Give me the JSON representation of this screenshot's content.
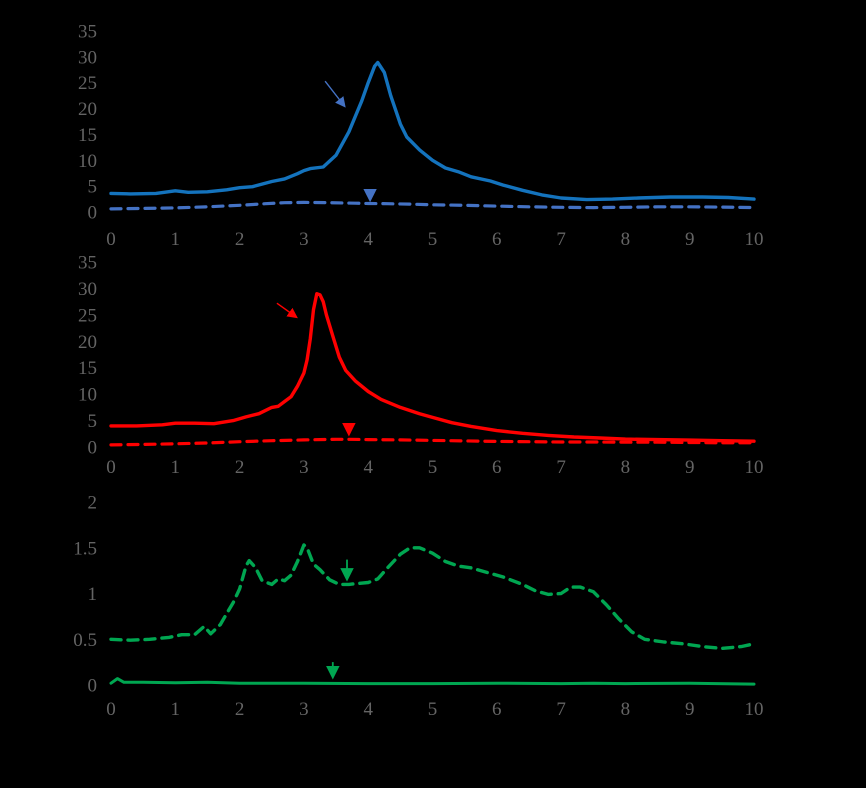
{
  "figure": {
    "background": "#000000",
    "tick_label_color": "#646464",
    "panels": [
      "top-blue-panel",
      "middle-red-panel",
      "bottom-green-panel"
    ]
  },
  "chart_data": [
    {
      "type": "line",
      "panel": "top-blue-panel",
      "title": "",
      "xlabel": "",
      "ylabel": "",
      "xlim": [
        0,
        10
      ],
      "ylim": [
        0,
        35
      ],
      "x_ticks": [
        0,
        1,
        2,
        3,
        4,
        5,
        6,
        7,
        8,
        9,
        10
      ],
      "y_ticks": [
        0,
        5,
        10,
        15,
        20,
        25,
        30,
        35
      ],
      "grid": false,
      "legend": "none",
      "series": [
        {
          "name": "blue-solid",
          "color": "#1473BD",
          "dash": "solid",
          "width": 3.4,
          "points": [
            [
              0,
              3.6
            ],
            [
              0.3,
              3.5
            ],
            [
              0.7,
              3.6
            ],
            [
              1.0,
              4.1
            ],
            [
              1.2,
              3.8
            ],
            [
              1.5,
              3.9
            ],
            [
              1.8,
              4.3
            ],
            [
              2.0,
              4.7
            ],
            [
              2.2,
              4.9
            ],
            [
              2.5,
              5.9
            ],
            [
              2.7,
              6.4
            ],
            [
              2.9,
              7.4
            ],
            [
              3.0,
              8.0
            ],
            [
              3.1,
              8.4
            ],
            [
              3.3,
              8.7
            ],
            [
              3.5,
              11.0
            ],
            [
              3.7,
              15.5
            ],
            [
              3.9,
              21.5
            ],
            [
              4.0,
              25.0
            ],
            [
              4.1,
              28.2
            ],
            [
              4.15,
              28.9
            ],
            [
              4.25,
              27.0
            ],
            [
              4.35,
              22.5
            ],
            [
              4.5,
              17.0
            ],
            [
              4.6,
              14.5
            ],
            [
              4.8,
              12.0
            ],
            [
              5.0,
              10.0
            ],
            [
              5.2,
              8.5
            ],
            [
              5.4,
              7.8
            ],
            [
              5.6,
              6.8
            ],
            [
              5.9,
              6.0
            ],
            [
              6.1,
              5.2
            ],
            [
              6.4,
              4.2
            ],
            [
              6.7,
              3.3
            ],
            [
              7.0,
              2.7
            ],
            [
              7.4,
              2.4
            ],
            [
              7.8,
              2.5
            ],
            [
              8.2,
              2.7
            ],
            [
              8.7,
              2.9
            ],
            [
              9.2,
              2.9
            ],
            [
              9.6,
              2.8
            ],
            [
              10,
              2.5
            ]
          ]
        },
        {
          "name": "blue-dashed",
          "color": "#4472C4",
          "dash": "dashed",
          "width": 3.2,
          "points": [
            [
              0,
              0.6
            ],
            [
              0.5,
              0.7
            ],
            [
              1.0,
              0.8
            ],
            [
              1.5,
              1.0
            ],
            [
              2.0,
              1.3
            ],
            [
              2.4,
              1.6
            ],
            [
              2.7,
              1.8
            ],
            [
              3.0,
              1.85
            ],
            [
              3.4,
              1.8
            ],
            [
              3.8,
              1.7
            ],
            [
              4.0,
              1.65
            ],
            [
              4.3,
              1.6
            ],
            [
              4.7,
              1.5
            ],
            [
              5.0,
              1.4
            ],
            [
              5.5,
              1.3
            ],
            [
              6.0,
              1.15
            ],
            [
              6.5,
              1.0
            ],
            [
              7.0,
              0.9
            ],
            [
              7.5,
              0.85
            ],
            [
              8.0,
              0.9
            ],
            [
              8.5,
              1.0
            ],
            [
              9.0,
              1.0
            ],
            [
              9.5,
              0.95
            ],
            [
              10,
              0.85
            ]
          ]
        }
      ],
      "annotations": [
        {
          "name": "arrow-to-blue-solid",
          "type": "arrow",
          "color": "#4472C4",
          "from": [
            3.33,
            25.3
          ],
          "to": [
            3.63,
            20.5
          ],
          "stroke_width": 1.4
        },
        {
          "name": "arrow-to-blue-dashed",
          "type": "arrow",
          "color": "#4472C4",
          "from": [
            4.03,
            4.4
          ],
          "to": [
            4.03,
            2.4
          ],
          "stroke_width": 1.8
        }
      ]
    },
    {
      "type": "line",
      "panel": "middle-red-panel",
      "title": "",
      "xlabel": "",
      "ylabel": "",
      "xlim": [
        0,
        10
      ],
      "ylim": [
        0,
        35
      ],
      "x_ticks": [
        0,
        1,
        2,
        3,
        4,
        5,
        6,
        7,
        8,
        9,
        10
      ],
      "y_ticks": [
        0,
        5,
        10,
        15,
        20,
        25,
        30,
        35
      ],
      "grid": false,
      "legend": "none",
      "series": [
        {
          "name": "red-solid",
          "color": "#FF0000",
          "dash": "solid",
          "width": 3.4,
          "points": [
            [
              0,
              4.0
            ],
            [
              0.4,
              4.0
            ],
            [
              0.8,
              4.2
            ],
            [
              1.0,
              4.5
            ],
            [
              1.3,
              4.5
            ],
            [
              1.6,
              4.4
            ],
            [
              1.9,
              5.0
            ],
            [
              2.1,
              5.7
            ],
            [
              2.3,
              6.3
            ],
            [
              2.5,
              7.5
            ],
            [
              2.6,
              7.7
            ],
            [
              2.7,
              8.6
            ],
            [
              2.8,
              9.5
            ],
            [
              2.9,
              11.5
            ],
            [
              3.0,
              14.0
            ],
            [
              3.05,
              16.5
            ],
            [
              3.1,
              20.5
            ],
            [
              3.15,
              26.0
            ],
            [
              3.2,
              29.0
            ],
            [
              3.25,
              28.8
            ],
            [
              3.3,
              27.5
            ],
            [
              3.35,
              25.0
            ],
            [
              3.45,
              21.0
            ],
            [
              3.55,
              17.0
            ],
            [
              3.65,
              14.5
            ],
            [
              3.8,
              12.5
            ],
            [
              4.0,
              10.5
            ],
            [
              4.2,
              9.0
            ],
            [
              4.5,
              7.5
            ],
            [
              4.8,
              6.3
            ],
            [
              5.0,
              5.6
            ],
            [
              5.3,
              4.6
            ],
            [
              5.6,
              3.9
            ],
            [
              6.0,
              3.1
            ],
            [
              6.4,
              2.6
            ],
            [
              6.8,
              2.2
            ],
            [
              7.2,
              1.9
            ],
            [
              7.6,
              1.7
            ],
            [
              8.0,
              1.5
            ],
            [
              8.5,
              1.4
            ],
            [
              9.0,
              1.3
            ],
            [
              9.5,
              1.2
            ],
            [
              10,
              1.1
            ]
          ]
        },
        {
          "name": "red-dashed",
          "color": "#FF0000",
          "dash": "dashed",
          "width": 3.2,
          "points": [
            [
              0,
              0.4
            ],
            [
              0.5,
              0.5
            ],
            [
              1.0,
              0.6
            ],
            [
              1.5,
              0.75
            ],
            [
              2.0,
              1.0
            ],
            [
              2.5,
              1.2
            ],
            [
              3.0,
              1.35
            ],
            [
              3.5,
              1.45
            ],
            [
              3.7,
              1.45
            ],
            [
              4.0,
              1.4
            ],
            [
              4.5,
              1.35
            ],
            [
              5.0,
              1.25
            ],
            [
              5.5,
              1.15
            ],
            [
              6.0,
              1.05
            ],
            [
              6.5,
              1.0
            ],
            [
              7.0,
              0.95
            ],
            [
              7.5,
              0.95
            ],
            [
              8.0,
              0.9
            ],
            [
              8.5,
              0.9
            ],
            [
              9.0,
              0.85
            ],
            [
              9.5,
              0.8
            ],
            [
              10,
              0.8
            ]
          ]
        }
      ],
      "annotations": [
        {
          "name": "arrow-to-red-solid",
          "type": "arrow",
          "color": "#FF0000",
          "from": [
            2.58,
            27.2
          ],
          "to": [
            2.88,
            24.6
          ],
          "stroke_width": 1.4
        },
        {
          "name": "arrow-to-red-dashed",
          "type": "arrow",
          "color": "#FF0000",
          "from": [
            3.7,
            4.5
          ],
          "to": [
            3.7,
            2.5
          ],
          "stroke_width": 1.8
        }
      ]
    },
    {
      "type": "line",
      "panel": "bottom-green-panel",
      "title": "",
      "xlabel": "",
      "ylabel": "",
      "xlim": [
        0,
        10
      ],
      "ylim": [
        0,
        2
      ],
      "x_ticks": [
        0,
        1,
        2,
        3,
        4,
        5,
        6,
        7,
        8,
        9,
        10
      ],
      "y_ticks": [
        0,
        0.5,
        1,
        1.5,
        2
      ],
      "grid": false,
      "legend": "none",
      "series": [
        {
          "name": "green-dashed",
          "color": "#00A651",
          "dash": "dashed",
          "width": 3.4,
          "points": [
            [
              0,
              0.5
            ],
            [
              0.3,
              0.49
            ],
            [
              0.6,
              0.5
            ],
            [
              0.9,
              0.52
            ],
            [
              1.1,
              0.55
            ],
            [
              1.3,
              0.55
            ],
            [
              1.45,
              0.64
            ],
            [
              1.55,
              0.56
            ],
            [
              1.7,
              0.66
            ],
            [
              1.8,
              0.78
            ],
            [
              1.9,
              0.9
            ],
            [
              2.0,
              1.05
            ],
            [
              2.1,
              1.3
            ],
            [
              2.15,
              1.36
            ],
            [
              2.25,
              1.28
            ],
            [
              2.35,
              1.14
            ],
            [
              2.5,
              1.1
            ],
            [
              2.6,
              1.16
            ],
            [
              2.7,
              1.14
            ],
            [
              2.8,
              1.2
            ],
            [
              2.9,
              1.35
            ],
            [
              3.0,
              1.53
            ],
            [
              3.05,
              1.5
            ],
            [
              3.15,
              1.32
            ],
            [
              3.25,
              1.26
            ],
            [
              3.4,
              1.15
            ],
            [
              3.55,
              1.1
            ],
            [
              3.7,
              1.1
            ],
            [
              3.85,
              1.11
            ],
            [
              4.0,
              1.12
            ],
            [
              4.15,
              1.16
            ],
            [
              4.3,
              1.28
            ],
            [
              4.5,
              1.43
            ],
            [
              4.65,
              1.5
            ],
            [
              4.8,
              1.5
            ],
            [
              5.0,
              1.44
            ],
            [
              5.2,
              1.35
            ],
            [
              5.4,
              1.3
            ],
            [
              5.6,
              1.28
            ],
            [
              5.9,
              1.22
            ],
            [
              6.1,
              1.18
            ],
            [
              6.4,
              1.1
            ],
            [
              6.6,
              1.03
            ],
            [
              6.8,
              0.99
            ],
            [
              7.0,
              1.0
            ],
            [
              7.15,
              1.07
            ],
            [
              7.3,
              1.07
            ],
            [
              7.5,
              1.02
            ],
            [
              7.7,
              0.88
            ],
            [
              7.9,
              0.72
            ],
            [
              8.1,
              0.58
            ],
            [
              8.3,
              0.5
            ],
            [
              8.6,
              0.47
            ],
            [
              8.9,
              0.45
            ],
            [
              9.2,
              0.42
            ],
            [
              9.5,
              0.4
            ],
            [
              9.8,
              0.42
            ],
            [
              10,
              0.45
            ]
          ]
        },
        {
          "name": "green-solid",
          "color": "#00A651",
          "dash": "solid",
          "width": 3,
          "points": [
            [
              0,
              0.02
            ],
            [
              0.1,
              0.07
            ],
            [
              0.2,
              0.03
            ],
            [
              0.5,
              0.03
            ],
            [
              1.0,
              0.025
            ],
            [
              1.5,
              0.03
            ],
            [
              2.0,
              0.02
            ],
            [
              3.0,
              0.02
            ],
            [
              4.0,
              0.015
            ],
            [
              5.0,
              0.015
            ],
            [
              6.0,
              0.02
            ],
            [
              7.0,
              0.015
            ],
            [
              7.5,
              0.02
            ],
            [
              8.0,
              0.015
            ],
            [
              9.0,
              0.02
            ],
            [
              10,
              0.01
            ]
          ]
        }
      ],
      "annotations": [
        {
          "name": "arrow-to-green-dashed",
          "type": "arrow",
          "color": "#00A651",
          "from": [
            3.67,
            1.37
          ],
          "to": [
            3.67,
            1.16
          ],
          "stroke_width": 1.8
        },
        {
          "name": "arrow-to-green-solid",
          "type": "arrow",
          "color": "#00A651",
          "from": [
            3.45,
            0.25
          ],
          "to": [
            3.45,
            0.09
          ],
          "stroke_width": 1.8
        }
      ]
    }
  ]
}
